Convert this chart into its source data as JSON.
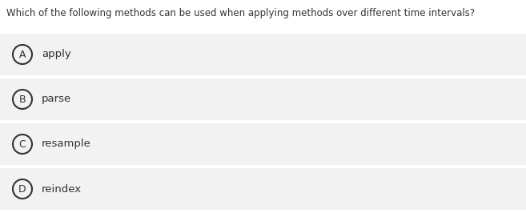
{
  "question": "Which of the following methods can be used when applying methods over different time intervals?",
  "options": [
    {
      "label": "A",
      "text": "apply"
    },
    {
      "label": "B",
      "text": "parse"
    },
    {
      "label": "C",
      "text": "resample"
    },
    {
      "label": "D",
      "text": "reindex"
    }
  ],
  "page_bg": "#ffffff",
  "option_bg": "#f2f2f2",
  "gap_color": "#ffffff",
  "circle_edge": "#333333",
  "text_color": "#333333",
  "question_color": "#333333",
  "question_fontsize": 8.5,
  "option_fontsize": 9.5,
  "label_fontsize": 9.0
}
